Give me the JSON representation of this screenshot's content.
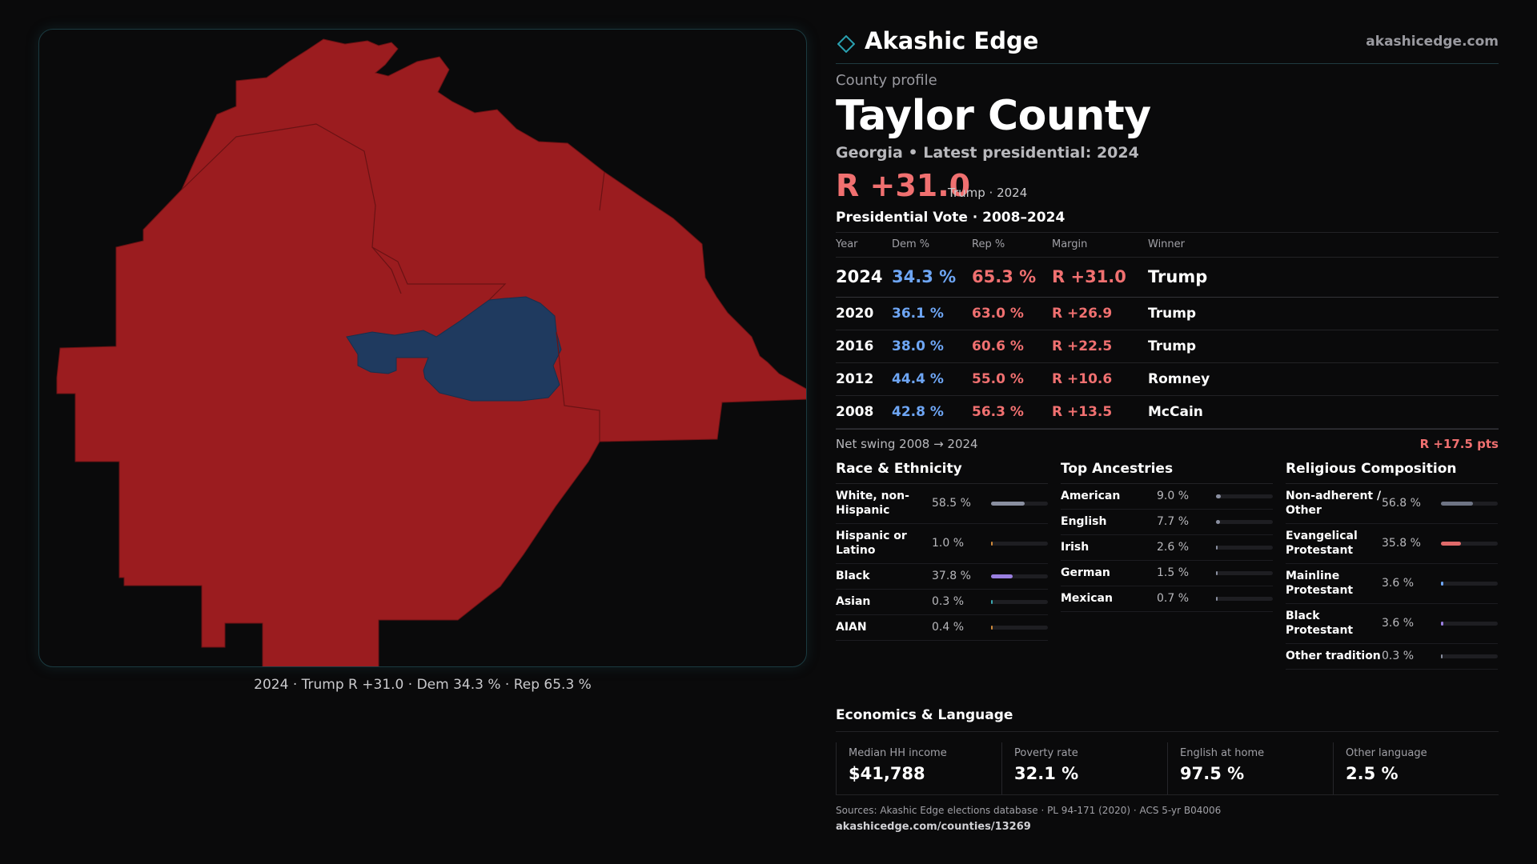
{
  "brand": {
    "name": "Akashic Edge",
    "url": "akashicedge.com"
  },
  "profile": {
    "eyebrow": "County profile",
    "county": "Taylor County",
    "subtitle": "Georgia • Latest presidential: 2024",
    "headline_margin": "R +31.0",
    "headline_note": "Trump · 2024"
  },
  "map": {
    "caption": "2024 · Trump R +31.0 · Dem 34.3 % · Rep 65.3 %",
    "colors": {
      "republican": "#9b1c1f",
      "democratic": "#1f3a5f",
      "border": "#6a1214"
    }
  },
  "presidential": {
    "title": "Presidential Vote · 2008–2024",
    "headers": {
      "year": "Year",
      "dem": "Dem %",
      "rep": "Rep %",
      "margin": "Margin",
      "winner": "Winner"
    },
    "rows": [
      {
        "year": "2024",
        "dem": "34.3 %",
        "rep": "65.3 %",
        "margin": "R +31.0",
        "winner": "Trump"
      },
      {
        "year": "2020",
        "dem": "36.1 %",
        "rep": "63.0 %",
        "margin": "R +26.9",
        "winner": "Trump"
      },
      {
        "year": "2016",
        "dem": "38.0 %",
        "rep": "60.6 %",
        "margin": "R +22.5",
        "winner": "Trump"
      },
      {
        "year": "2012",
        "dem": "44.4 %",
        "rep": "55.0 %",
        "margin": "R +10.6",
        "winner": "Romney"
      },
      {
        "year": "2008",
        "dem": "42.8 %",
        "rep": "56.3 %",
        "margin": "R +13.5",
        "winner": "McCain"
      }
    ],
    "swing_label": "Net swing 2008 → 2024",
    "swing_value": "R +17.5 pts"
  },
  "race": {
    "title": "Race & Ethnicity",
    "items": [
      {
        "label": "White, non-Hispanic",
        "value": "58.5 %",
        "pct": 58.5,
        "color": "#8a8fa0"
      },
      {
        "label": "Hispanic or Latino",
        "value": "1.0 %",
        "pct": 1.0,
        "color": "#d08a3a"
      },
      {
        "label": "Black",
        "value": "37.8 %",
        "pct": 37.8,
        "color": "#9a7fe0"
      },
      {
        "label": "Asian",
        "value": "0.3 %",
        "pct": 0.3,
        "color": "#3aa8b0"
      },
      {
        "label": "AIAN",
        "value": "0.4 %",
        "pct": 0.4,
        "color": "#d08a3a"
      }
    ]
  },
  "ancestry": {
    "title": "Top Ancestries",
    "items": [
      {
        "label": "American",
        "value": "9.0 %",
        "pct": 9.0,
        "color": "#8a8fa0"
      },
      {
        "label": "English",
        "value": "7.7 %",
        "pct": 7.7,
        "color": "#8a8fa0"
      },
      {
        "label": "Irish",
        "value": "2.6 %",
        "pct": 2.6,
        "color": "#8a8fa0"
      },
      {
        "label": "German",
        "value": "1.5 %",
        "pct": 1.5,
        "color": "#8a8fa0"
      },
      {
        "label": "Mexican",
        "value": "0.7 %",
        "pct": 0.7,
        "color": "#8a8fa0"
      }
    ]
  },
  "religion": {
    "title": "Religious Composition",
    "items": [
      {
        "label": "Non-adherent / Other",
        "value": "56.8 %",
        "pct": 56.8,
        "color": "#6e7484"
      },
      {
        "label": "Evangelical Protestant",
        "value": "35.8 %",
        "pct": 35.8,
        "color": "#e06a6a"
      },
      {
        "label": "Mainline Protestant",
        "value": "3.6 %",
        "pct": 3.6,
        "color": "#6ea6f5"
      },
      {
        "label": "Black Protestant",
        "value": "3.6 %",
        "pct": 3.6,
        "color": "#9a7fe0"
      },
      {
        "label": "Other tradition",
        "value": "0.3 %",
        "pct": 0.3,
        "color": "#8a8fa0"
      }
    ]
  },
  "economics": {
    "title": "Economics & Language",
    "items": [
      {
        "label": "Median HH income",
        "value": "$41,788"
      },
      {
        "label": "Poverty rate",
        "value": "32.1 %"
      },
      {
        "label": "English at home",
        "value": "97.5 %"
      },
      {
        "label": "Other language",
        "value": "2.5 %"
      }
    ]
  },
  "footer": {
    "sources": "Sources: Akashic Edge elections database · PL 94-171 (2020) · ACS 5-yr B04006",
    "url": "akashicedge.com/counties/13269"
  }
}
